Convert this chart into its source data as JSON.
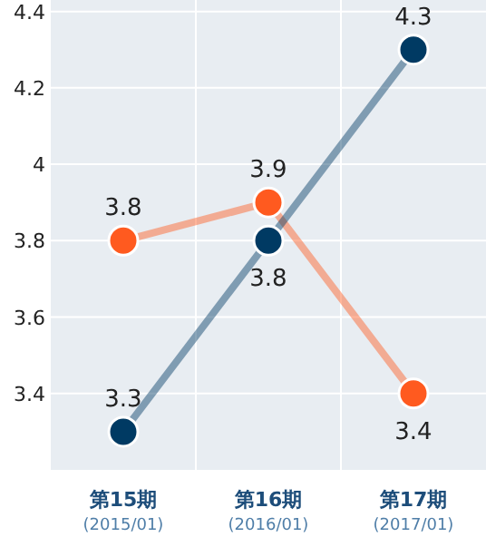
{
  "chart_data": {
    "type": "line",
    "categories": [
      "第15期\n(2015/01)",
      "第16期\n(2016/01)",
      "第17期\n(2017/01)"
    ],
    "series": [
      {
        "color": "#ff5a1f",
        "values": [
          3.8,
          3.9,
          3.4
        ]
      },
      {
        "color": "#003a63",
        "values": [
          3.3,
          3.8,
          4.3
        ]
      }
    ],
    "ylim": [
      3.2,
      4.43
    ],
    "yticks": [
      3.4,
      3.6,
      3.8,
      4,
      4.2,
      4.4
    ],
    "grid": true,
    "marker": "circle",
    "line_style": "solid",
    "data_labels": true
  }
}
